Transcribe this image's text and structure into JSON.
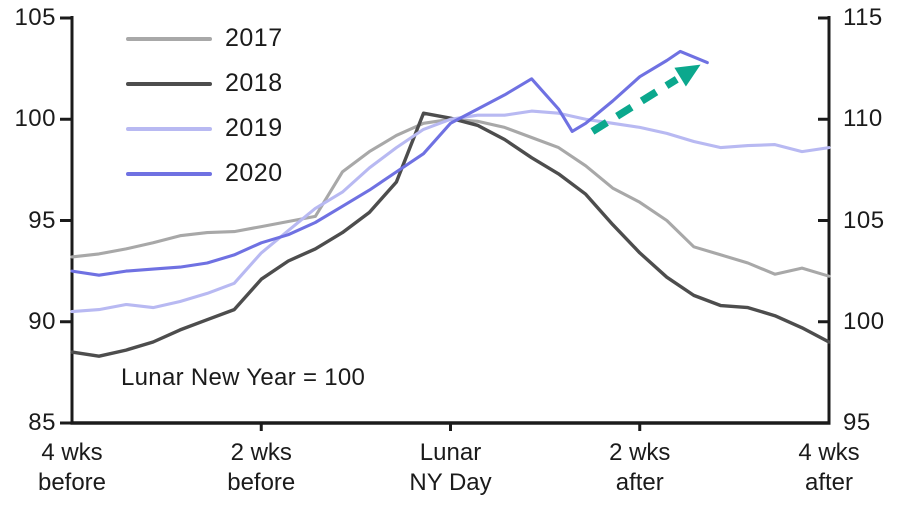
{
  "chart_data": {
    "type": "line",
    "annotation": "Lunar New Year = 100",
    "axis_color": "#1b1b1b",
    "x_axis": {
      "unit": "days relative to Lunar New Year",
      "range_days": [
        -28,
        28
      ],
      "ticks": [
        {
          "day": -28,
          "line1": "4 wks",
          "line2": "before"
        },
        {
          "day": -14,
          "line1": "2 wks",
          "line2": "before"
        },
        {
          "day": 0,
          "line1": "Lunar",
          "line2": "NY Day"
        },
        {
          "day": 14,
          "line1": "2 wks",
          "line2": "after"
        },
        {
          "day": 28,
          "line1": "4 wks",
          "line2": "after"
        }
      ]
    },
    "y_left": {
      "min": 85,
      "max": 105,
      "ticks": [
        "105",
        "100",
        "95",
        "90",
        "85"
      ]
    },
    "y_right": {
      "min": 95,
      "max": 115,
      "ticks": [
        "115",
        "110",
        "105",
        "100",
        "95"
      ],
      "offset_from_left": 10
    },
    "series": [
      {
        "name": "2017",
        "color": "#a8a8a8",
        "days": [
          -28,
          -26,
          -24,
          -22,
          -20,
          -18,
          -16,
          -14,
          -12,
          -10,
          -8,
          -6,
          -4,
          -2,
          0,
          2,
          4,
          6,
          8,
          10,
          12,
          14,
          16,
          18,
          20,
          22,
          24,
          26,
          28
        ],
        "values": [
          93.2,
          93.35,
          93.6,
          93.9,
          94.25,
          94.4,
          94.45,
          94.7,
          94.95,
          95.2,
          97.4,
          98.4,
          99.2,
          99.8,
          100.0,
          99.9,
          99.6,
          99.1,
          98.6,
          97.7,
          96.6,
          95.9,
          95.0,
          93.7,
          93.3,
          92.9,
          92.35,
          92.65,
          92.25
        ]
      },
      {
        "name": "2018",
        "color": "#4d4d4d",
        "days": [
          -28,
          -26,
          -24,
          -22,
          -20,
          -18,
          -16,
          -14,
          -12,
          -10,
          -8,
          -6,
          -4,
          -2,
          0,
          2,
          4,
          6,
          8,
          10,
          12,
          14,
          16,
          18,
          20,
          22,
          24,
          26,
          28
        ],
        "values": [
          88.5,
          88.3,
          88.6,
          89.0,
          89.6,
          90.1,
          90.6,
          92.1,
          93.0,
          93.6,
          94.4,
          95.4,
          96.9,
          100.3,
          100.05,
          99.7,
          99.0,
          98.1,
          97.3,
          96.3,
          94.8,
          93.4,
          92.2,
          91.3,
          90.8,
          90.7,
          90.3,
          89.7,
          89.0
        ]
      },
      {
        "name": "2019",
        "color": "#b8b9f2",
        "days": [
          -28,
          -26,
          -24,
          -22,
          -20,
          -18,
          -16,
          -14,
          -12,
          -10,
          -8,
          -6,
          -4,
          -2,
          0,
          2,
          4,
          6,
          8,
          10,
          12,
          14,
          16,
          18,
          20,
          22,
          24,
          26,
          28
        ],
        "values": [
          90.5,
          90.6,
          90.85,
          90.7,
          91.0,
          91.4,
          91.9,
          93.4,
          94.5,
          95.6,
          96.4,
          97.6,
          98.6,
          99.5,
          100.0,
          100.2,
          100.2,
          100.4,
          100.3,
          100.0,
          99.8,
          99.6,
          99.3,
          98.9,
          98.6,
          98.7,
          98.75,
          98.4,
          98.6
        ]
      },
      {
        "name": "2020",
        "color": "#6f71e2",
        "days": [
          -28,
          -26,
          -24,
          -22,
          -20,
          -18,
          -16,
          -14,
          -12,
          -10,
          -8,
          -6,
          -4,
          -2,
          0,
          2,
          4,
          6,
          8,
          9,
          10,
          12,
          14,
          16,
          17,
          19
        ],
        "values": [
          92.5,
          92.3,
          92.5,
          92.6,
          92.7,
          92.9,
          93.3,
          93.9,
          94.3,
          94.9,
          95.7,
          96.5,
          97.4,
          98.3,
          99.8,
          100.5,
          101.2,
          102.0,
          100.5,
          99.4,
          99.8,
          100.9,
          102.1,
          102.9,
          103.35,
          102.8
        ]
      }
    ],
    "trend_arrow": {
      "color": "#0ba88d",
      "style": "dashed",
      "from": {
        "day": 10.5,
        "value": 99.4
      },
      "to": {
        "day": 18.5,
        "value": 102.7
      }
    }
  }
}
